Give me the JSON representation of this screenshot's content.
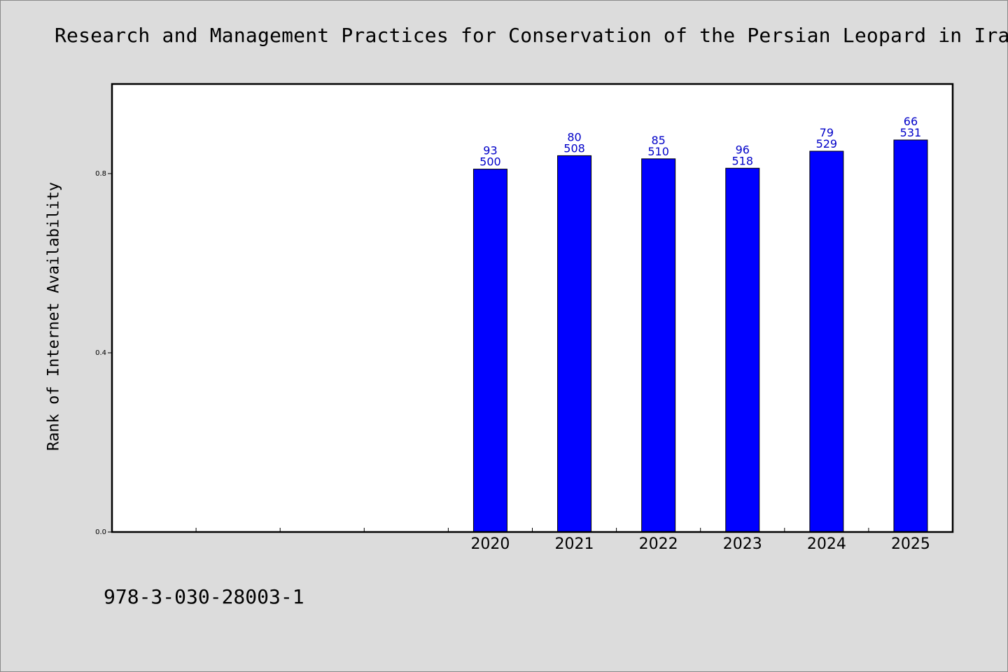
{
  "chart_data": {
    "type": "bar",
    "title": "Research and Management Practices for Conservation of the Persian Leopard in Ira",
    "xlabel": "",
    "ylabel": "Rank of Internet Availability",
    "categories": [
      "",
      "",
      "",
      "",
      "2020",
      "2021",
      "2022",
      "2023",
      "2024",
      "2025"
    ],
    "values": [
      null,
      null,
      null,
      null,
      0.81,
      0.84,
      0.833,
      0.812,
      0.85,
      0.875
    ],
    "bar_labels_top": [
      "",
      "",
      "",
      "",
      "93",
      "80",
      "85",
      "96",
      "79",
      "66"
    ],
    "bar_labels_bottom": [
      "",
      "",
      "",
      "",
      "500",
      "508",
      "510",
      "518",
      "529",
      "531"
    ],
    "ylim": [
      0,
      1.0
    ],
    "yticks": [
      0.0,
      0.4,
      0.8
    ],
    "ytick_labels": [
      "0.0",
      "0.4",
      "0.8"
    ],
    "grid": false,
    "legend": "none",
    "colors": {
      "bar": "#0000ff",
      "bar_label": "#0000c8",
      "plot_bg": "#ffffff",
      "page_bg": "#dcdcdc"
    }
  },
  "footer": {
    "identifier": "978-3-030-28003-1"
  }
}
